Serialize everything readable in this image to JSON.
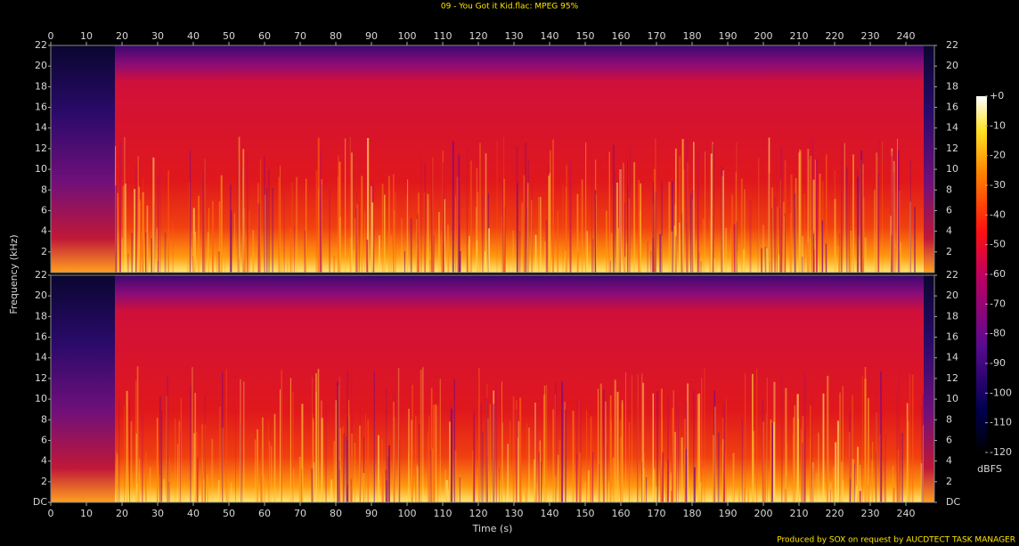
{
  "chart_data": [
    {
      "type": "spectrogram",
      "title": "09 - You Got it Kid.flac: MPEG 95%",
      "x_label": "Time (s)",
      "y_label": "Frequency (kHz)",
      "footer": "Produced by SOX on request by AUCDTECT TASK MANAGER",
      "xlim": [
        0,
        248
      ],
      "xticks": [
        0,
        10,
        20,
        30,
        40,
        50,
        60,
        70,
        80,
        90,
        100,
        110,
        120,
        130,
        140,
        150,
        160,
        170,
        180,
        190,
        200,
        210,
        220,
        230,
        240
      ],
      "ylim": [
        0,
        22
      ],
      "yticks": [
        2,
        4,
        6,
        8,
        10,
        12,
        14,
        16,
        18,
        20,
        22
      ],
      "colorbar": {
        "label": "dBFS",
        "lim": [
          -120,
          0
        ],
        "ticks": [
          {
            "value": 0,
            "label": "+0"
          },
          -10,
          -20,
          -30,
          -40,
          -50,
          -60,
          -70,
          -80,
          -90,
          -100,
          -110,
          -120
        ]
      }
    },
    {
      "type": "spectrogram",
      "xlim": [
        0,
        248
      ],
      "xticks": [
        0,
        10,
        20,
        30,
        40,
        50,
        60,
        70,
        80,
        90,
        100,
        110,
        120,
        130,
        140,
        150,
        160,
        170,
        180,
        190,
        200,
        210,
        220,
        230,
        240
      ],
      "ylim": [
        0,
        22
      ],
      "yticks": [
        {
          "value": 0,
          "label": "DC"
        },
        2,
        4,
        6,
        8,
        10,
        12,
        14,
        16,
        18,
        20,
        22
      ]
    }
  ]
}
